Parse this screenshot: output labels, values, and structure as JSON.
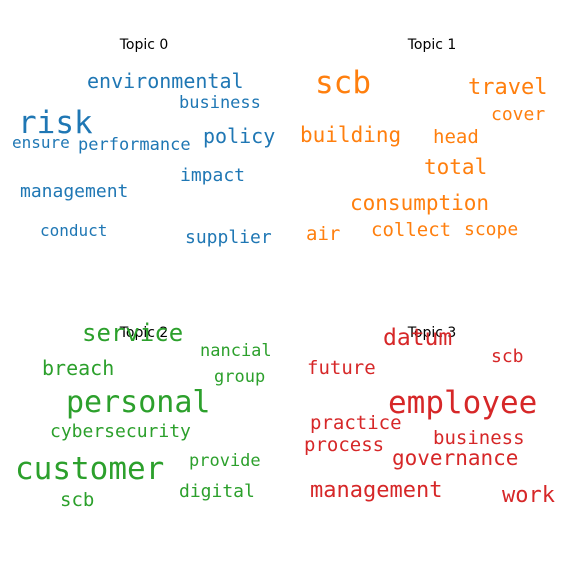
{
  "chart_data": [
    {
      "type": "wordcloud",
      "title": "Topic 0",
      "color": "#1f77b4",
      "words": [
        {
          "text": "risk",
          "weight": 1.0
        },
        {
          "text": "environmental",
          "weight": 0.6
        },
        {
          "text": "policy",
          "weight": 0.55
        },
        {
          "text": "business",
          "weight": 0.45
        },
        {
          "text": "performance",
          "weight": 0.45
        },
        {
          "text": "ensure",
          "weight": 0.43
        },
        {
          "text": "impact",
          "weight": 0.5
        },
        {
          "text": "management",
          "weight": 0.5
        },
        {
          "text": "conduct",
          "weight": 0.42
        },
        {
          "text": "supplier",
          "weight": 0.48
        }
      ]
    },
    {
      "type": "wordcloud",
      "title": "Topic 1",
      "color": "#ff7f0e",
      "words": [
        {
          "text": "scb",
          "weight": 1.0
        },
        {
          "text": "travel",
          "weight": 0.65
        },
        {
          "text": "cover",
          "weight": 0.52
        },
        {
          "text": "building",
          "weight": 0.62
        },
        {
          "text": "head",
          "weight": 0.55
        },
        {
          "text": "total",
          "weight": 0.6
        },
        {
          "text": "consumption",
          "weight": 0.62
        },
        {
          "text": "air",
          "weight": 0.52
        },
        {
          "text": "collect",
          "weight": 0.52
        },
        {
          "text": "scope",
          "weight": 0.5
        }
      ]
    },
    {
      "type": "wordcloud",
      "title": "Topic 2",
      "color": "#2ca02c",
      "words": [
        {
          "text": "service",
          "weight": 0.8
        },
        {
          "text": "nancial",
          "weight": 0.55
        },
        {
          "text": "breach",
          "weight": 0.67
        },
        {
          "text": "group",
          "weight": 0.55
        },
        {
          "text": "personal",
          "weight": 0.95
        },
        {
          "text": "cybersecurity",
          "weight": 0.57
        },
        {
          "text": "customer",
          "weight": 1.0
        },
        {
          "text": "provide",
          "weight": 0.55
        },
        {
          "text": "digital",
          "weight": 0.57
        },
        {
          "text": "scb",
          "weight": 0.6
        }
      ]
    },
    {
      "type": "wordcloud",
      "title": "Topic 3",
      "color": "#d62728",
      "words": [
        {
          "text": "datum",
          "weight": 0.8
        },
        {
          "text": "scb",
          "weight": 0.55
        },
        {
          "text": "future",
          "weight": 0.6
        },
        {
          "text": "employee",
          "weight": 1.0
        },
        {
          "text": "practice",
          "weight": 0.6
        },
        {
          "text": "business",
          "weight": 0.6
        },
        {
          "text": "process",
          "weight": 0.6
        },
        {
          "text": "governance",
          "weight": 0.67
        },
        {
          "text": "management",
          "weight": 0.75
        },
        {
          "text": "work",
          "weight": 0.75
        }
      ]
    }
  ]
}
